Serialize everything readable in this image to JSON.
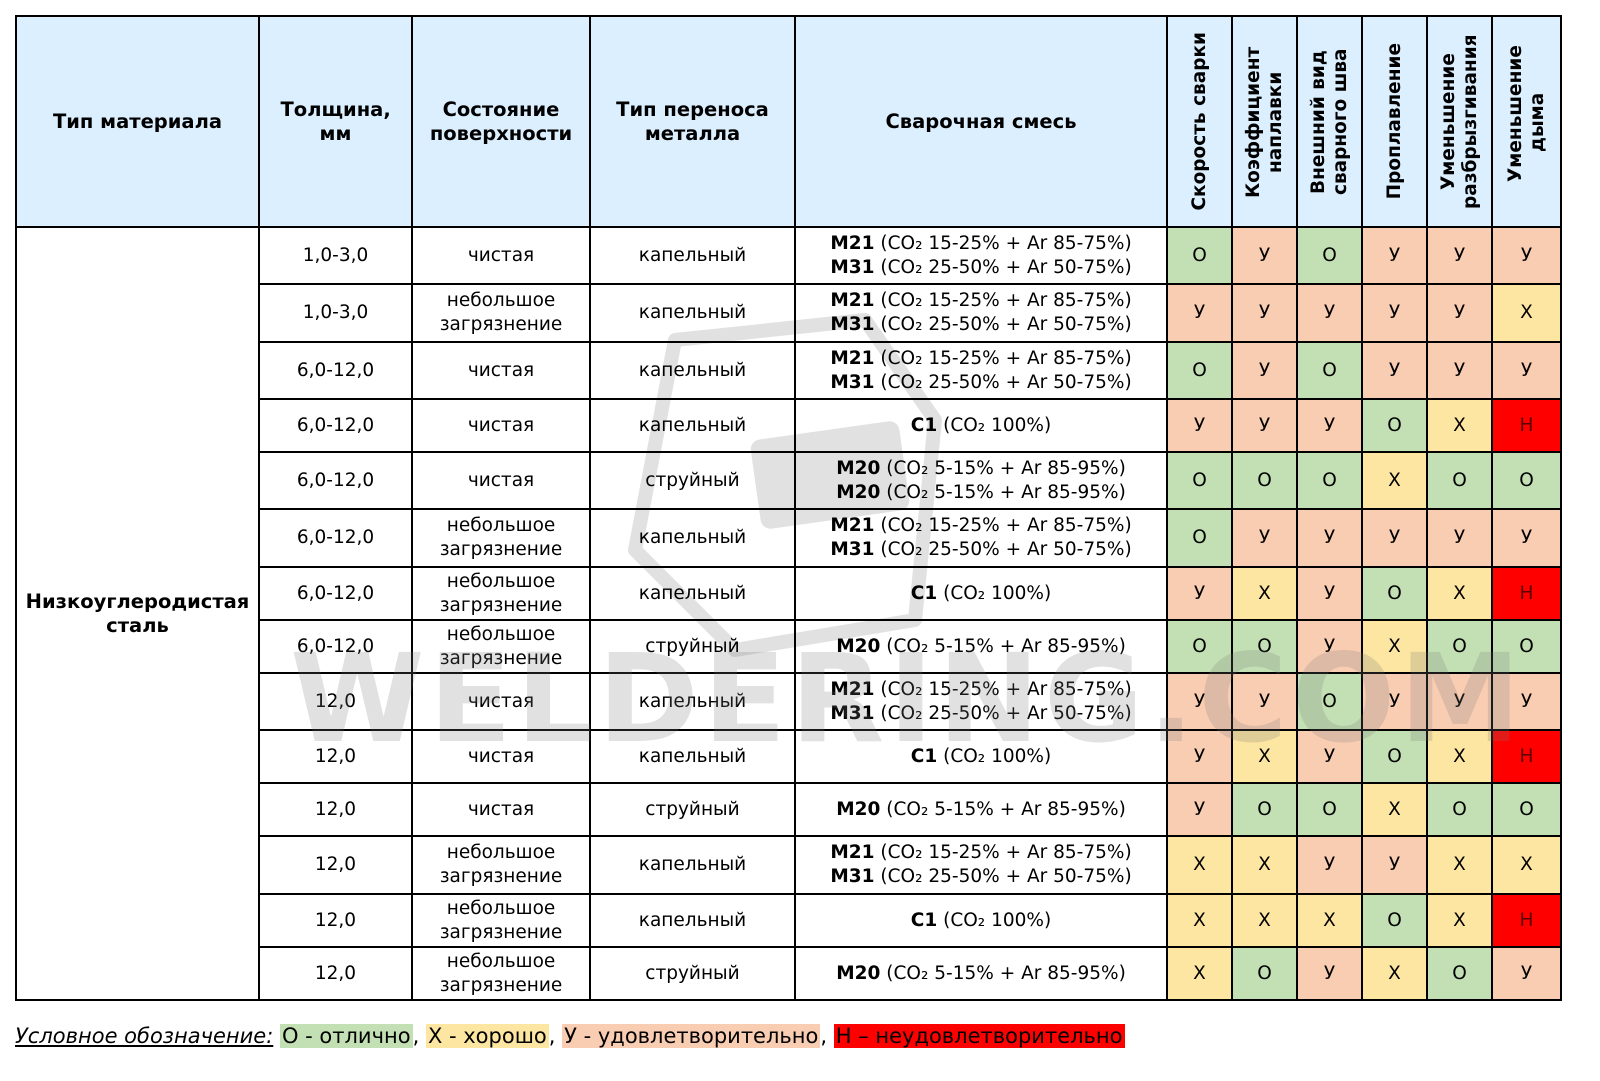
{
  "header": {
    "material": "Тип материала",
    "thickness": "Толщина, мм",
    "surface": "Состояние поверхности",
    "transfer": "Тип переноса металла",
    "mix": "Сварочная смесь",
    "ratings": [
      "Скорость сварки",
      "Коэффициент наплавки",
      "Внешний вид сварного шва",
      "Проплавление",
      "Уменьшение разбрызгивания",
      "Уменьшение дыма"
    ]
  },
  "material": "Низкоуглеродистая сталь",
  "rows": [
    {
      "thickness": "1,0-3,0",
      "surface": "чистая",
      "transfer": "капельный",
      "mix": [
        {
          "code": "M21",
          "text": "(CO₂ 15-25% + Ar 85-75%)"
        },
        {
          "code": "M31",
          "text": "(CO₂ 25-50% + Ar 50-75%)"
        }
      ],
      "ratings": [
        "О",
        "У",
        "О",
        "У",
        "У",
        "У"
      ]
    },
    {
      "thickness": "1,0-3,0",
      "surface": "небольшое загрязнение",
      "transfer": "капельный",
      "mix": [
        {
          "code": "M21",
          "text": "(CO₂ 15-25% + Ar 85-75%)"
        },
        {
          "code": "M31",
          "text": "(CO₂ 25-50% + Ar 50-75%)"
        }
      ],
      "ratings": [
        "У",
        "У",
        "У",
        "У",
        "У",
        "Х"
      ]
    },
    {
      "thickness": "6,0-12,0",
      "surface": "чистая",
      "transfer": "капельный",
      "mix": [
        {
          "code": "M21",
          "text": "(CO₂ 15-25% + Ar 85-75%)"
        },
        {
          "code": "M31",
          "text": "(CO₂ 25-50% + Ar 50-75%)"
        }
      ],
      "ratings": [
        "О",
        "У",
        "О",
        "У",
        "У",
        "У"
      ]
    },
    {
      "thickness": "6,0-12,0",
      "surface": "чистая",
      "transfer": "капельный",
      "mix": [
        {
          "code": "C1",
          "text": "(CO₂ 100%)"
        }
      ],
      "ratings": [
        "У",
        "У",
        "У",
        "О",
        "Х",
        "Н"
      ]
    },
    {
      "thickness": "6,0-12,0",
      "surface": "чистая",
      "transfer": "струйный",
      "mix": [
        {
          "code": "M20",
          "text": "(CO₂ 5-15% + Ar 85-95%)"
        },
        {
          "code": "M20",
          "text": "(CO₂ 5-15% + Ar 85-95%)"
        }
      ],
      "ratings": [
        "О",
        "О",
        "О",
        "Х",
        "О",
        "О"
      ]
    },
    {
      "thickness": "6,0-12,0",
      "surface": "небольшое загрязнение",
      "transfer": "капельный",
      "mix": [
        {
          "code": "M21",
          "text": "(CO₂ 15-25% + Ar 85-75%)"
        },
        {
          "code": "M31",
          "text": "(CO₂ 25-50% + Ar 50-75%)"
        }
      ],
      "ratings": [
        "О",
        "У",
        "У",
        "У",
        "У",
        "У"
      ]
    },
    {
      "thickness": "6,0-12,0",
      "surface": "небольшое загрязнение",
      "transfer": "капельный",
      "mix": [
        {
          "code": "C1",
          "text": "(CO₂ 100%)"
        }
      ],
      "ratings": [
        "У",
        "Х",
        "У",
        "О",
        "Х",
        "Н"
      ]
    },
    {
      "thickness": "6,0-12,0",
      "surface": "небольшое загрязнение",
      "transfer": "струйный",
      "mix": [
        {
          "code": "M20",
          "text": "(CO₂ 5-15% + Ar 85-95%)"
        }
      ],
      "ratings": [
        "О",
        "О",
        "У",
        "Х",
        "О",
        "О"
      ]
    },
    {
      "thickness": "12,0",
      "surface": "чистая",
      "transfer": "капельный",
      "mix": [
        {
          "code": "M21",
          "text": "(CO₂ 15-25% + Ar 85-75%)"
        },
        {
          "code": "M31",
          "text": "(CO₂ 25-50% + Ar 50-75%)"
        }
      ],
      "ratings": [
        "У",
        "У",
        "О",
        "У",
        "У",
        "У"
      ]
    },
    {
      "thickness": "12,0",
      "surface": "чистая",
      "transfer": "капельный",
      "mix": [
        {
          "code": "C1",
          "text": "(CO₂ 100%)"
        }
      ],
      "ratings": [
        "У",
        "Х",
        "У",
        "О",
        "Х",
        "Н"
      ]
    },
    {
      "thickness": "12,0",
      "surface": "чистая",
      "transfer": "струйный",
      "mix": [
        {
          "code": "M20",
          "text": "(CO₂ 5-15% + Ar 85-95%)"
        }
      ],
      "ratings": [
        "У",
        "О",
        "О",
        "Х",
        "О",
        "О"
      ]
    },
    {
      "thickness": "12,0",
      "surface": "небольшое загрязнение",
      "transfer": "капельный",
      "mix": [
        {
          "code": "M21",
          "text": "(CO₂ 15-25% + Ar 85-75%)"
        },
        {
          "code": "M31",
          "text": "(CO₂ 25-50% + Ar 50-75%)"
        }
      ],
      "ratings": [
        "Х",
        "Х",
        "У",
        "У",
        "Х",
        "Х"
      ]
    },
    {
      "thickness": "12,0",
      "surface": "небольшое загрязнение",
      "transfer": "капельный",
      "mix": [
        {
          "code": "C1",
          "text": "(CO₂ 100%)"
        }
      ],
      "ratings": [
        "Х",
        "Х",
        "Х",
        "О",
        "Х",
        "Н"
      ]
    },
    {
      "thickness": "12,0",
      "surface": "небольшое загрязнение",
      "transfer": "струйный",
      "mix": [
        {
          "code": "M20",
          "text": "(CO₂ 5-15% + Ar 85-95%)"
        }
      ],
      "ratings": [
        "Х",
        "О",
        "У",
        "Х",
        "О",
        "У"
      ]
    }
  ],
  "legend": {
    "title": "Условное обозначение:",
    "excellent": "О - отлично",
    "good": "Х - хорошо",
    "satisfactory": "У - удовлетворительно",
    "unsatisfactory": "Н – неудовлетворительно"
  },
  "watermark": "WELDERING.COM",
  "colors": {
    "header_bg": "#dcefff",
    "excellent": "#c3e0b4",
    "good": "#fde6a2",
    "satisfactory": "#f9cdb2",
    "unsatisfactory": "#ff0000"
  }
}
